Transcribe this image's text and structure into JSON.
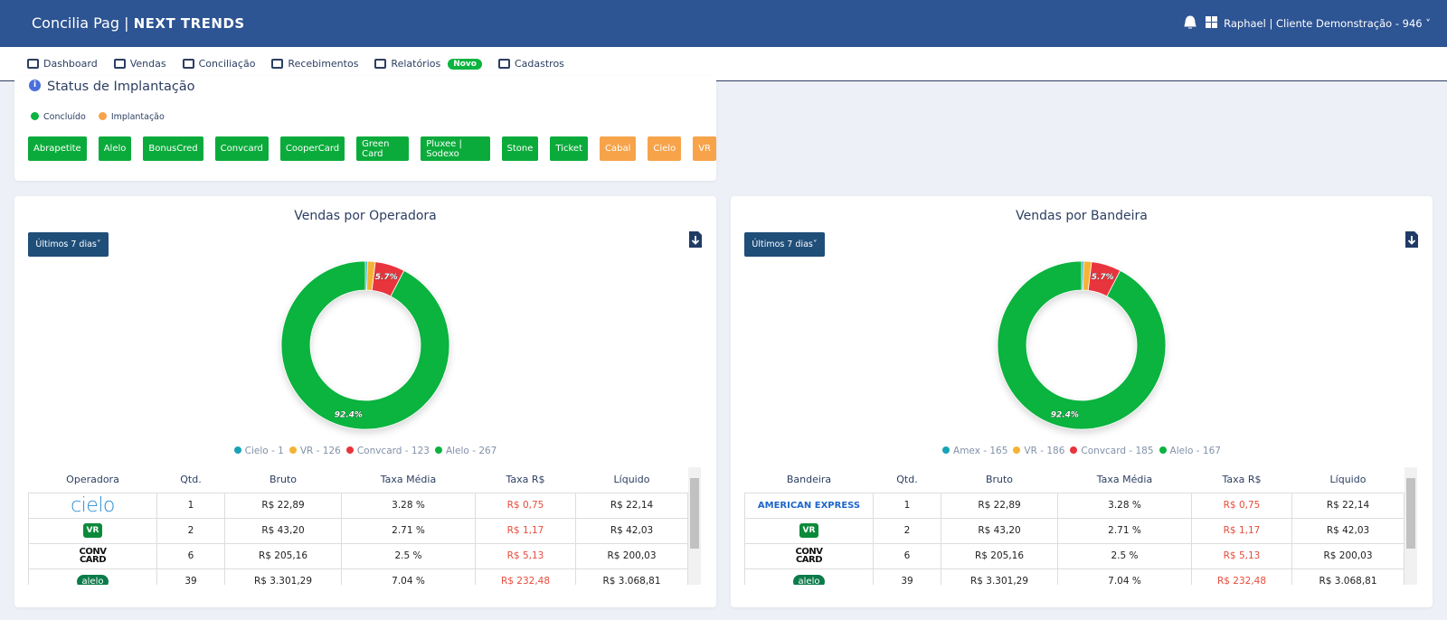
{
  "header": {
    "brand": "Concilia Pag",
    "partner": "NEXT TRENDS",
    "user": "Raphael | Cliente Demonstração - 946"
  },
  "nav": {
    "items": [
      "Dashboard",
      "Vendas",
      "Conciliação",
      "Recebimentos",
      "Relatórios",
      "Cadastros"
    ],
    "badge": "Novo"
  },
  "status": {
    "title": "Status de Implantação",
    "legend": [
      "Concluído",
      "Implantação"
    ],
    "done": [
      "Abrapetite",
      "Alelo",
      "BonusCred",
      "Convcard",
      "CooperCard",
      "Green Card",
      "Pluxee | Sodexo",
      "Stone",
      "Ticket"
    ],
    "pending": [
      "Cabal",
      "Cielo",
      "VR"
    ]
  },
  "chart_data": [
    {
      "type": "pie",
      "title": "Vendas por Operadora",
      "categories": [
        "Cielo - 1",
        "VR - 126",
        "Convcard - 123",
        "Alelo - 267"
      ],
      "values": [
        0.4,
        1.5,
        5.7,
        92.4
      ],
      "value_labels": [
        null,
        null,
        "5.7%",
        "92.4%"
      ],
      "colors": [
        "#17a2b8",
        "#f5b335",
        "#e8343c",
        "#0bb33f"
      ]
    },
    {
      "type": "pie",
      "title": "Vendas por Bandeira",
      "categories": [
        "Amex - 165",
        "VR - 186",
        "Convcard - 185",
        "Alelo - 167"
      ],
      "values": [
        0.4,
        1.5,
        5.7,
        92.4
      ],
      "value_labels": [
        null,
        null,
        "5.7%",
        "92.4%"
      ],
      "colors": [
        "#17a2b8",
        "#f5b335",
        "#e8343c",
        "#0bb33f"
      ]
    }
  ],
  "panels": [
    {
      "filter": "Últimos 7 dias",
      "table": {
        "columns": [
          "Operadora",
          "Qtd.",
          "Bruto",
          "Taxa Média",
          "Taxa R$",
          "Líquido"
        ],
        "rows": [
          [
            "cielo",
            "1",
            "R$ 22,89",
            "3.28 %",
            "R$ 0,75",
            "R$ 22,14"
          ],
          [
            "VR",
            "2",
            "R$ 43,20",
            "2.71 %",
            "R$ 1,17",
            "R$ 42,03"
          ],
          [
            "CONV CARD",
            "6",
            "R$ 205,16",
            "2.5 %",
            "R$ 5,13",
            "R$ 200,03"
          ],
          [
            "alelo",
            "39",
            "R$ 3.301,29",
            "7.04 %",
            "R$ 232,48",
            "R$ 3.068,81"
          ]
        ]
      }
    },
    {
      "filter": "Últimos 7 dias",
      "table": {
        "columns": [
          "Bandeira",
          "Qtd.",
          "Bruto",
          "Taxa Média",
          "Taxa R$",
          "Líquido"
        ],
        "rows": [
          [
            "AMERICAN EXPRESS",
            "1",
            "R$ 22,89",
            "3.28 %",
            "R$ 0,75",
            "R$ 22,14"
          ],
          [
            "VR",
            "2",
            "R$ 43,20",
            "2.71 %",
            "R$ 1,17",
            "R$ 42,03"
          ],
          [
            "CONV CARD",
            "6",
            "R$ 205,16",
            "2.5 %",
            "R$ 5,13",
            "R$ 200,03"
          ],
          [
            "alelo",
            "39",
            "R$ 3.301,29",
            "7.04 %",
            "R$ 232,48",
            "R$ 3.068,81"
          ]
        ]
      }
    }
  ]
}
